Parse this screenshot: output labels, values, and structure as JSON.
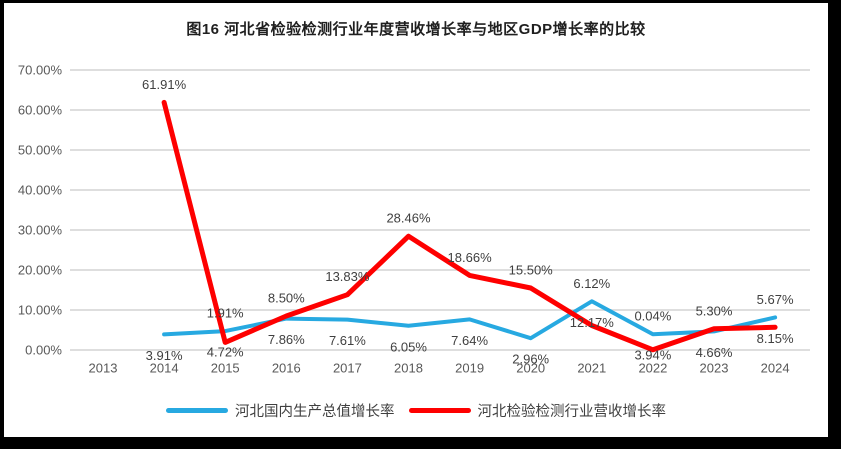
{
  "title": "图16 河北省检验检测行业年度营收增长率与地区GDP增长率的比较",
  "chart_data": {
    "type": "line",
    "title": "图16 河北省检验检测行业年度营收增长率与地区GDP增长率的比较",
    "categories": [
      "2013",
      "2014",
      "2015",
      "2016",
      "2017",
      "2018",
      "2019",
      "2020",
      "2021",
      "2022",
      "2023",
      "2024"
    ],
    "series": [
      {
        "name": "河北国内生产总值增长率",
        "color": "#27A9E1",
        "label_placement": "below",
        "values": [
          null,
          3.91,
          4.72,
          7.86,
          7.61,
          6.05,
          7.64,
          2.96,
          12.17,
          3.94,
          4.66,
          8.15
        ],
        "labels": [
          "",
          "3.91%",
          "4.72%",
          "7.86%",
          "7.61%",
          "6.05%",
          "7.64%",
          "2.96%",
          "12.17%",
          "3.94%",
          "4.66%",
          "8.15%"
        ]
      },
      {
        "name": "河北检验检测行业营收增长率",
        "color": "#FE0000",
        "label_placement": "above",
        "values": [
          null,
          61.91,
          1.91,
          8.5,
          13.83,
          28.46,
          18.66,
          15.5,
          6.12,
          0.04,
          5.3,
          5.67
        ],
        "labels": [
          "",
          "61.91%",
          "1.91%",
          "8.50%",
          "13.83%",
          "28.46%",
          "18.66%",
          "15.50%",
          "6.12%",
          "0.04%",
          "5.30%",
          "5.67%"
        ]
      }
    ],
    "xlabel": "",
    "ylabel": "",
    "ylim": [
      0,
      70
    ],
    "ytick_step": 10,
    "yticks": [
      "0.00%",
      "10.00%",
      "20.00%",
      "30.00%",
      "40.00%",
      "50.00%",
      "60.00%",
      "70.00%"
    ],
    "grid": true,
    "legend_position": "bottom",
    "colors": {
      "gridline": "#DEDEDE",
      "axis_text": "#595959",
      "data_label_text": "#404040",
      "title_text": "#1F1F1F",
      "frame_border": "#000000",
      "background": "#FFFFFF"
    }
  }
}
